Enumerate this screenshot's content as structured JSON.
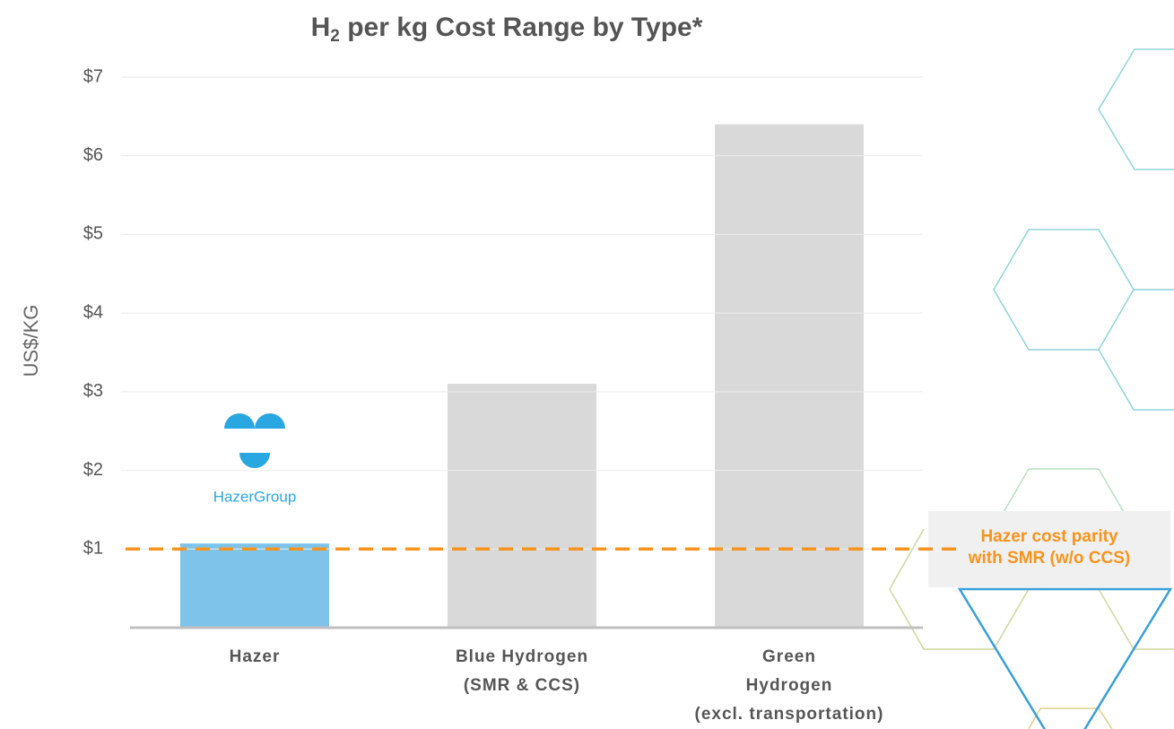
{
  "chart_data": {
    "type": "bar",
    "title": [
      "H",
      "2",
      " per kg Cost Range by Type*"
    ],
    "y_label": "US$/KG",
    "categories": [
      [
        "Hazer"
      ],
      [
        "Blue Hydrogen",
        "(SMR & CCS)"
      ],
      [
        "Green",
        "Hydrogen",
        "(excl. transportation)"
      ]
    ],
    "values": [
      1.07,
      3.1,
      6.4
    ],
    "colors": [
      "#7dc3ea",
      "#d9d9d9",
      "#d9d9d9"
    ],
    "ylim": [
      0,
      7
    ],
    "yticks": [
      {
        "value": 1,
        "label": "$1"
      },
      {
        "value": 2,
        "label": "$2"
      },
      {
        "value": 3,
        "label": "$3"
      },
      {
        "value": 4,
        "label": "$4"
      },
      {
        "value": 5,
        "label": "$5"
      },
      {
        "value": 6,
        "label": "$6"
      },
      {
        "value": 7,
        "label": "$7"
      }
    ],
    "grid": true,
    "reference_line": {
      "value": 1,
      "color": "#f7941d",
      "text": [
        "Hazer cost parity",
        "with SMR (w/o CCS)"
      ]
    },
    "logo_text": "HazerGroup"
  }
}
